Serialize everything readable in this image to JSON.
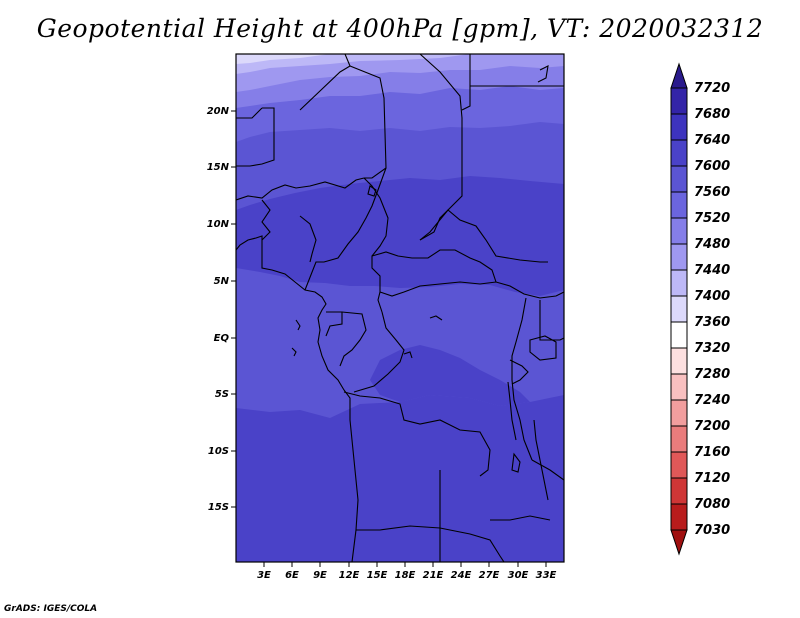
{
  "title": "Geopotential Height at 400hPa [gpm], VT: 2020032312",
  "credit": "GrADS: IGES/COLA",
  "map": {
    "lon_labels": [
      "3E",
      "6E",
      "9E",
      "12E",
      "15E",
      "18E",
      "21E",
      "24E",
      "27E",
      "30E",
      "33E"
    ],
    "lat_labels": [
      "20N",
      "15N",
      "10N",
      "5N",
      "EQ",
      "5S",
      "10S",
      "15S"
    ]
  },
  "colorbar": {
    "levels": [
      "7720",
      "7680",
      "7640",
      "7600",
      "7560",
      "7520",
      "7480",
      "7440",
      "7400",
      "7360",
      "7320",
      "7280",
      "7240",
      "7200",
      "7160",
      "7120",
      "7080",
      "7030"
    ],
    "colors": [
      "#2a1a8c",
      "#3324a8",
      "#3d33be",
      "#4a42c8",
      "#5b55d3",
      "#6b65de",
      "#857ee8",
      "#9f98f0",
      "#bdb8f7",
      "#dcd9fb",
      "#ffffff",
      "#fde0e0",
      "#f9c0c0",
      "#f29e9e",
      "#ea7c7c",
      "#e05858",
      "#cf3636",
      "#b81c1c",
      "#a01010"
    ]
  },
  "colors": {
    "band_top": "#e4e2fc",
    "band_dark": "#4a42c8"
  }
}
